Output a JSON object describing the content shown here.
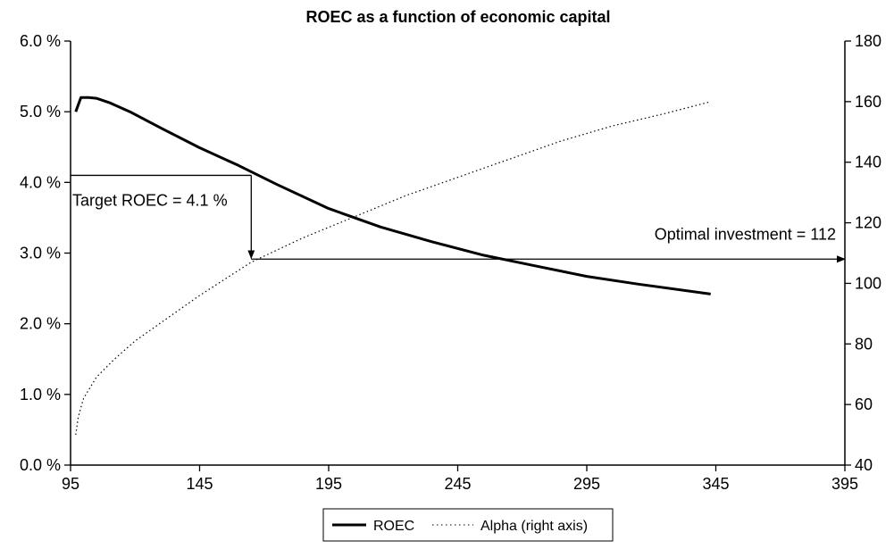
{
  "chart_data": {
    "type": "line",
    "title": "ROEC as a function of economic capital",
    "xlabel": "",
    "ylabel": "",
    "y2label": "",
    "xlim": [
      95,
      395
    ],
    "ylim": [
      0.0,
      6.0
    ],
    "y2lim": [
      40,
      180
    ],
    "xticks": [
      95,
      145,
      195,
      245,
      295,
      345,
      395
    ],
    "xtick_labels": [
      "95",
      "145",
      "195",
      "245",
      "295",
      "345",
      "395"
    ],
    "yticks": [
      0,
      1,
      2,
      3,
      4,
      5,
      6
    ],
    "ytick_labels": [
      "0.0 %",
      "1.0 %",
      "2.0 %",
      "3.0 %",
      "4.0 %",
      "5.0 %",
      "6.0 %"
    ],
    "y2ticks": [
      40,
      60,
      80,
      100,
      120,
      140,
      160,
      180
    ],
    "y2tick_labels": [
      "40",
      "60",
      "80",
      "100",
      "120",
      "140",
      "160",
      "180"
    ],
    "grid": false,
    "legend_position": "bottom-center",
    "series": [
      {
        "name": "ROEC",
        "axis": "left",
        "style": "solid",
        "color": "#000000",
        "x": [
          97,
          99,
          102,
          105,
          110,
          118,
          130,
          145,
          160,
          175,
          195,
          215,
          235,
          255,
          275,
          295,
          315,
          343
        ],
        "y": [
          5.0,
          5.2,
          5.2,
          5.19,
          5.13,
          5.0,
          4.77,
          4.49,
          4.24,
          3.97,
          3.63,
          3.37,
          3.16,
          2.97,
          2.82,
          2.67,
          2.56,
          2.42
        ]
      },
      {
        "name": "Alpha (right axis)",
        "axis": "right",
        "style": "dotted",
        "color": "#000000",
        "x": [
          97,
          98,
          100,
          105,
          112,
          120,
          130,
          145,
          165,
          185,
          205,
          225,
          245,
          265,
          285,
          305,
          325,
          343
        ],
        "y": [
          50,
          56,
          62,
          69,
          75,
          81,
          87,
          96,
          107,
          115,
          122,
          129,
          135,
          141,
          147,
          152,
          156,
          160
        ]
      }
    ],
    "annotations": [
      {
        "text": "Target ROEC = 4.1 %",
        "x": 165,
        "y": 4.1
      },
      {
        "text": "Optimal investment = 112",
        "x": 165,
        "y2": 108
      }
    ]
  },
  "legend": {
    "roec_label": "ROEC",
    "alpha_label": "Alpha (right axis)"
  }
}
